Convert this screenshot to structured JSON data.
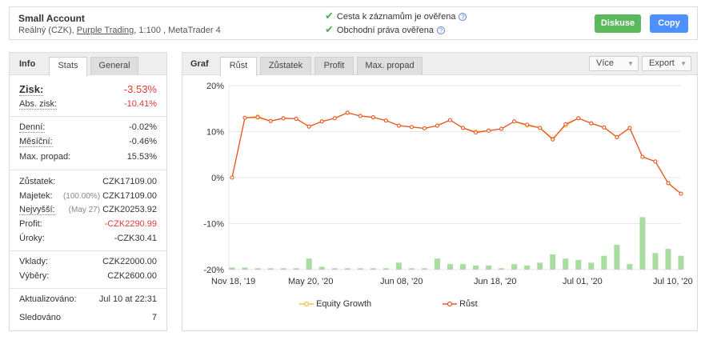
{
  "header": {
    "title": "Small Account",
    "sub_prefix": "Reálný (CZK), ",
    "broker": "Purple Trading",
    "sub_suffix": ", 1:100 , MetaTrader 4",
    "verify1": "Cesta k záznamům je ověřena",
    "verify2": "Obchodní práva ověřena",
    "discuss": "Diskuse",
    "copy": "Copy"
  },
  "left": {
    "tab_label": "Info",
    "tabs": [
      "Stats",
      "General"
    ],
    "zisk": {
      "label": "Zisk:",
      "value": "-3.53%"
    },
    "abs_zisk": {
      "label": "Abs. zisk:",
      "value": "-10.41%"
    },
    "denni": {
      "label": "Denní:",
      "value": "-0.02%"
    },
    "mesicni": {
      "label": "Měsíční:",
      "value": "-0.46%"
    },
    "max_propad": {
      "label": "Max. propad:",
      "value": "15.53%"
    },
    "zustatek": {
      "label": "Zůstatek:",
      "value": "CZK17109.00"
    },
    "majetek": {
      "label": "Majetek:",
      "note": "(100.00%)",
      "value": "CZK17109.00"
    },
    "nejvyssi": {
      "label": "Nejvyšší:",
      "note": "(May 27)",
      "value": "CZK20253.92"
    },
    "profit": {
      "label": "Profit:",
      "value": "-CZK2290.99"
    },
    "uroky": {
      "label": "Úroky:",
      "value": "-CZK30.41"
    },
    "vklady": {
      "label": "Vklady:",
      "value": "CZK22000.00"
    },
    "vybery": {
      "label": "Výběry:",
      "value": "CZK2600.00"
    },
    "aktualizovano": {
      "label": "Aktualizováno:",
      "value": "Jul 10 at 22:31"
    },
    "sledovano": {
      "label": "Sledováno",
      "value": "7"
    }
  },
  "right": {
    "tab_label": "Graf",
    "tabs": [
      "Růst",
      "Zůstatek",
      "Profit",
      "Max. propad"
    ],
    "more": "Více",
    "export": "Export"
  },
  "colors": {
    "growth_line": "#e8562a",
    "equity_line": "#f5c242",
    "bars": "#a8dca0",
    "green_button": "#5cb85c",
    "blue_button": "#4d90fe",
    "negative": "#e53935"
  },
  "chart_data": {
    "type": "line",
    "y_ticks": [
      "20%",
      "10%",
      "0%",
      "-10%",
      "-20%"
    ],
    "ylim": [
      -20,
      20
    ],
    "x_ticks": [
      "Nov 18, '19",
      "May 20, '20",
      "Jun 08, '20",
      "Jun 18, '20",
      "Jul 01, '20",
      "Jul 10, '20"
    ],
    "grid": true,
    "legend_position": "bottom",
    "series": [
      {
        "name": "Equity Growth",
        "values": [
          0,
          13,
          13.3,
          12.3,
          12.9,
          12.8,
          11.1,
          12.2,
          12.9,
          14.1,
          13.4,
          13.1,
          12.4,
          11.3,
          11,
          10.7,
          11.3,
          12.5,
          10.8,
          10,
          10.2,
          10.6,
          12.2,
          11.3,
          10.8,
          8.5,
          11.3,
          12.9,
          11.8,
          10.9,
          8.8,
          10.8,
          4.5,
          3.5,
          -1.2,
          -3.5
        ]
      },
      {
        "name": "Růst",
        "values": [
          0,
          13,
          13.1,
          12.3,
          12.9,
          12.8,
          11.1,
          12.2,
          12.9,
          14.1,
          13.4,
          13.1,
          12.4,
          11.3,
          11,
          10.7,
          11.3,
          12.5,
          10.8,
          9.8,
          10.2,
          10.6,
          12.2,
          11.5,
          10.8,
          8.3,
          11.6,
          12.9,
          11.8,
          10.9,
          8.8,
          10.8,
          4.5,
          3.5,
          -1.2,
          -3.5
        ]
      }
    ],
    "bars": [
      0.3,
      0.3,
      0.2,
      0.2,
      0.2,
      0.2,
      1.6,
      0.4,
      0.2,
      0.2,
      0.2,
      0.2,
      0.2,
      1,
      0.2,
      0.2,
      1.6,
      0.8,
      0.8,
      0.6,
      0.6,
      0.2,
      0.8,
      0.6,
      1,
      2.2,
      1.6,
      1.4,
      1,
      2,
      3.6,
      0.8,
      7.6,
      2.4,
      3,
      2
    ]
  }
}
